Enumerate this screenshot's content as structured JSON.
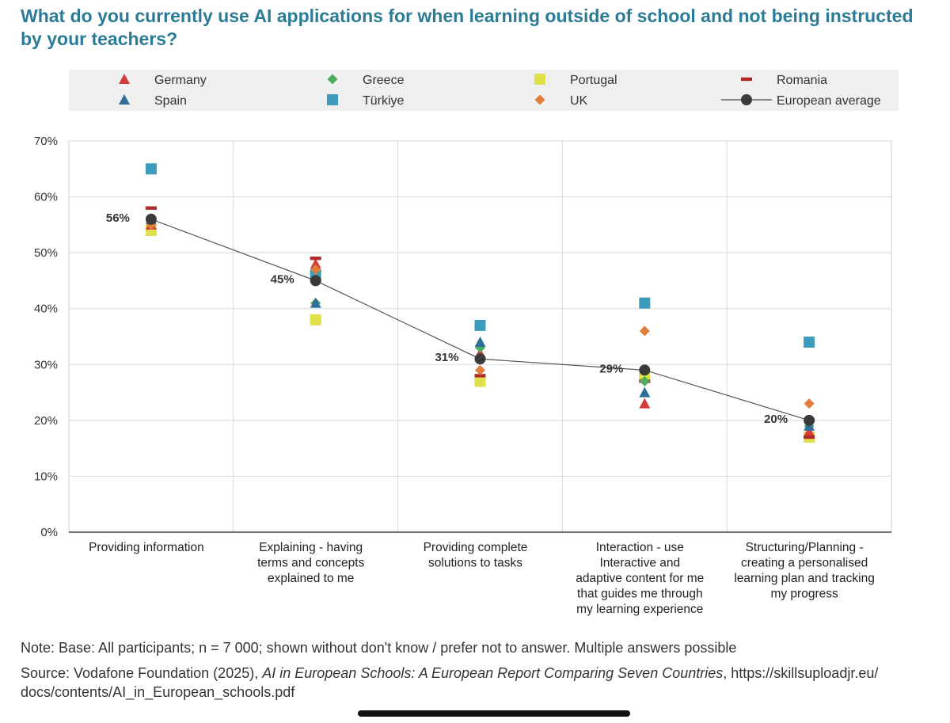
{
  "chart_data": {
    "type": "scatter",
    "title": "What do you currently use AI applications for when learning outside of school and not being instructed by your teachers?",
    "xlabel": "",
    "ylabel": "",
    "ylim": [
      0,
      70
    ],
    "yticks": [
      0,
      10,
      20,
      30,
      40,
      50,
      60,
      70
    ],
    "ytick_labels": [
      "0%",
      "10%",
      "20%",
      "30%",
      "40%",
      "50%",
      "60%",
      "70%"
    ],
    "grid": true,
    "legend_position": "top",
    "categories": [
      [
        "Providing information"
      ],
      [
        "Explaining - having",
        "terms and concepts",
        "explained to me"
      ],
      [
        "Providing complete",
        "solutions to tasks"
      ],
      [
        "Interaction - use",
        "Interactive and",
        "adaptive content for me",
        "that guides me through",
        "my learning experience"
      ],
      [
        "Structuring/Planning -",
        "creating a personalised",
        "learning plan and tracking",
        "my progress"
      ]
    ],
    "series": [
      {
        "name": "Germany",
        "marker": "triangle",
        "color": "#d63b3b",
        "values": [
          55,
          48,
          32,
          23,
          18
        ]
      },
      {
        "name": "Greece",
        "marker": "diamond",
        "color": "#4fae5e",
        "values": [
          56,
          41,
          33,
          27,
          19
        ]
      },
      {
        "name": "Portugal",
        "marker": "square",
        "color": "#dfe04a",
        "values": [
          54,
          38,
          27,
          28,
          17
        ]
      },
      {
        "name": "Romania",
        "marker": "dash",
        "color": "#b02a2a",
        "values": [
          58,
          49,
          28,
          27,
          17
        ]
      },
      {
        "name": "Spain",
        "marker": "triangle",
        "color": "#2f6e96",
        "values": [
          56,
          41,
          34,
          25,
          19
        ]
      },
      {
        "name": "Türkiye",
        "marker": "square",
        "color": "#3d9cbb",
        "values": [
          65,
          46,
          37,
          41,
          34
        ]
      },
      {
        "name": "UK",
        "marker": "diamond",
        "color": "#e07f3a",
        "values": [
          55,
          47,
          29,
          36,
          23
        ]
      },
      {
        "name": "European average",
        "marker": "circle-line",
        "color": "#3a3a3a",
        "values": [
          56,
          45,
          31,
          29,
          20
        ]
      }
    ],
    "avg_labels": [
      "56%",
      "45%",
      "31%",
      "29%",
      "20%"
    ]
  },
  "notes": {
    "note_line": "Note: Base: All participants; n = 7 000; shown without don't know / prefer not to answer. Multiple answers possible",
    "source_prefix": "Source: Vodafone Foundation (2025),",
    "source_title": "AI in European Schools: A European Report Comparing Seven Countries",
    "source_suffix": ", https://skillsuploadjr.eu/",
    "source_line2": "docs/contents/AI_in_European_schools.pdf"
  }
}
